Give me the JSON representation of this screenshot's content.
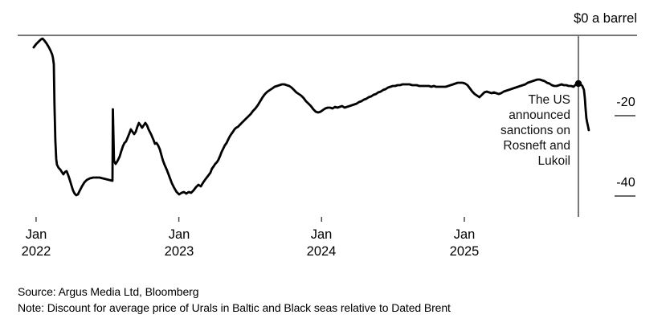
{
  "footer": {
    "source": "Source: Argus Media Ltd, Bloomberg",
    "note": "Note: Discount for average price of Urals in Baltic and Black seas relative to Dated Brent"
  },
  "chart_data": {
    "type": "line",
    "title": "",
    "xlabel": "",
    "ylabel": "$ a barrel",
    "y_top_label": "$0 a barrel",
    "x_domain": [
      2021.871,
      2026.21
    ],
    "y_domain": [
      -45.2,
      0
    ],
    "grid": "off",
    "legend": "none",
    "x_ticks": [
      {
        "t": 2022,
        "label": "Jan\n2022"
      },
      {
        "t": 2023,
        "label": "Jan\n2023"
      },
      {
        "t": 2024,
        "label": "Jan\n2024"
      },
      {
        "t": 2025,
        "label": "Jan\n2025"
      }
    ],
    "y_ticks": [
      {
        "v": -20,
        "label": "-20"
      },
      {
        "v": -40,
        "label": "-40"
      }
    ],
    "annotation": {
      "t": 2025.799,
      "v": -12.0,
      "text": "The US\nannounced\nsanctions on\nRosneft and\nLukoil"
    },
    "colors": {
      "line": "#000000",
      "axis": "#767676",
      "tick": "#4a4a4a"
    },
    "series": [
      {
        "name": "Urals discount to Dated Brent, $ a barrel",
        "points": [
          [
            2021.983,
            -3.0
          ],
          [
            2022.0,
            -2.2
          ],
          [
            2022.017,
            -1.6
          ],
          [
            2022.034,
            -1.0
          ],
          [
            2022.045,
            -0.8
          ],
          [
            2022.056,
            -1.2
          ],
          [
            2022.073,
            -2.0
          ],
          [
            2022.09,
            -3.0
          ],
          [
            2022.101,
            -3.8
          ],
          [
            2022.113,
            -4.8
          ],
          [
            2022.118,
            -5.6
          ],
          [
            2022.124,
            -7.2
          ],
          [
            2022.129,
            -17.2
          ],
          [
            2022.135,
            -26.2
          ],
          [
            2022.141,
            -30.8
          ],
          [
            2022.146,
            -32.2
          ],
          [
            2022.158,
            -33.0
          ],
          [
            2022.169,
            -33.4
          ],
          [
            2022.18,
            -34.0
          ],
          [
            2022.191,
            -34.6
          ],
          [
            2022.203,
            -34.0
          ],
          [
            2022.214,
            -33.8
          ],
          [
            2022.225,
            -34.8
          ],
          [
            2022.236,
            -36.0
          ],
          [
            2022.248,
            -37.4
          ],
          [
            2022.259,
            -38.6
          ],
          [
            2022.27,
            -39.4
          ],
          [
            2022.281,
            -39.8
          ],
          [
            2022.293,
            -39.6
          ],
          [
            2022.304,
            -38.8
          ],
          [
            2022.321,
            -37.6
          ],
          [
            2022.338,
            -36.6
          ],
          [
            2022.355,
            -36.0
          ],
          [
            2022.377,
            -35.6
          ],
          [
            2022.4,
            -35.4
          ],
          [
            2022.422,
            -35.4
          ],
          [
            2022.445,
            -35.4
          ],
          [
            2022.467,
            -35.6
          ],
          [
            2022.49,
            -35.8
          ],
          [
            2022.512,
            -36.0
          ],
          [
            2022.535,
            -36.2
          ],
          [
            2022.538,
            -18.4
          ],
          [
            2022.546,
            -31.2
          ],
          [
            2022.557,
            -32.0
          ],
          [
            2022.568,
            -31.4
          ],
          [
            2022.585,
            -30.2
          ],
          [
            2022.597,
            -28.8
          ],
          [
            2022.608,
            -27.6
          ],
          [
            2022.619,
            -26.8
          ],
          [
            2022.63,
            -26.4
          ],
          [
            2022.642,
            -25.4
          ],
          [
            2022.653,
            -24.4
          ],
          [
            2022.664,
            -23.4
          ],
          [
            2022.675,
            -24.0
          ],
          [
            2022.687,
            -24.6
          ],
          [
            2022.698,
            -24.0
          ],
          [
            2022.709,
            -22.8
          ],
          [
            2022.72,
            -21.8
          ],
          [
            2022.732,
            -22.4
          ],
          [
            2022.743,
            -23.0
          ],
          [
            2022.754,
            -22.4
          ],
          [
            2022.765,
            -21.8
          ],
          [
            2022.777,
            -22.4
          ],
          [
            2022.788,
            -23.4
          ],
          [
            2022.805,
            -24.6
          ],
          [
            2022.822,
            -26.0
          ],
          [
            2022.833,
            -27.0
          ],
          [
            2022.844,
            -26.8
          ],
          [
            2022.855,
            -27.4
          ],
          [
            2022.867,
            -28.4
          ],
          [
            2022.878,
            -29.8
          ],
          [
            2022.889,
            -31.2
          ],
          [
            2022.9,
            -32.2
          ],
          [
            2022.917,
            -33.6
          ],
          [
            2022.934,
            -35.2
          ],
          [
            2022.951,
            -36.8
          ],
          [
            2022.968,
            -38.0
          ],
          [
            2022.985,
            -39.0
          ],
          [
            2023.002,
            -39.6
          ],
          [
            2023.019,
            -39.2
          ],
          [
            2023.036,
            -39.0
          ],
          [
            2023.052,
            -39.4
          ],
          [
            2023.069,
            -39.0
          ],
          [
            2023.086,
            -39.2
          ],
          [
            2023.103,
            -38.6
          ],
          [
            2023.12,
            -37.8
          ],
          [
            2023.137,
            -37.2
          ],
          [
            2023.154,
            -37.6
          ],
          [
            2023.171,
            -36.6
          ],
          [
            2023.187,
            -35.8
          ],
          [
            2023.204,
            -35.0
          ],
          [
            2023.221,
            -34.2
          ],
          [
            2023.232,
            -33.2
          ],
          [
            2023.244,
            -32.6
          ],
          [
            2023.255,
            -32.0
          ],
          [
            2023.266,
            -31.6
          ],
          [
            2023.277,
            -31.0
          ],
          [
            2023.289,
            -30.0
          ],
          [
            2023.3,
            -29.0
          ],
          [
            2023.311,
            -28.2
          ],
          [
            2023.322,
            -27.4
          ],
          [
            2023.334,
            -26.8
          ],
          [
            2023.345,
            -26.0
          ],
          [
            2023.356,
            -25.2
          ],
          [
            2023.367,
            -24.6
          ],
          [
            2023.379,
            -24.0
          ],
          [
            2023.39,
            -23.4
          ],
          [
            2023.401,
            -23.0
          ],
          [
            2023.413,
            -22.8
          ],
          [
            2023.424,
            -22.4
          ],
          [
            2023.435,
            -22.0
          ],
          [
            2023.452,
            -21.4
          ],
          [
            2023.469,
            -20.8
          ],
          [
            2023.486,
            -20.2
          ],
          [
            2023.503,
            -19.6
          ],
          [
            2023.52,
            -18.8
          ],
          [
            2023.536,
            -18.2
          ],
          [
            2023.553,
            -17.4
          ],
          [
            2023.57,
            -16.4
          ],
          [
            2023.587,
            -15.4
          ],
          [
            2023.604,
            -14.6
          ],
          [
            2023.621,
            -14.0
          ],
          [
            2023.638,
            -13.6
          ],
          [
            2023.655,
            -13.2
          ],
          [
            2023.671,
            -12.8
          ],
          [
            2023.688,
            -12.6
          ],
          [
            2023.705,
            -12.4
          ],
          [
            2023.722,
            -12.2
          ],
          [
            2023.739,
            -12.2
          ],
          [
            2023.756,
            -12.4
          ],
          [
            2023.773,
            -12.6
          ],
          [
            2023.79,
            -13.0
          ],
          [
            2023.807,
            -13.6
          ],
          [
            2023.823,
            -14.2
          ],
          [
            2023.84,
            -14.6
          ],
          [
            2023.857,
            -15.0
          ],
          [
            2023.874,
            -15.6
          ],
          [
            2023.891,
            -16.4
          ],
          [
            2023.908,
            -17.0
          ],
          [
            2023.925,
            -17.6
          ],
          [
            2023.942,
            -18.4
          ],
          [
            2023.959,
            -19.0
          ],
          [
            2023.976,
            -19.2
          ],
          [
            2023.993,
            -19.0
          ],
          [
            2024.009,
            -18.6
          ],
          [
            2024.026,
            -18.2
          ],
          [
            2024.043,
            -18.0
          ],
          [
            2024.06,
            -18.0
          ],
          [
            2024.077,
            -18.2
          ],
          [
            2024.094,
            -17.8
          ],
          [
            2024.111,
            -18.0
          ],
          [
            2024.127,
            -17.8
          ],
          [
            2024.144,
            -17.6
          ],
          [
            2024.161,
            -18.0
          ],
          [
            2024.178,
            -17.8
          ],
          [
            2024.195,
            -17.6
          ],
          [
            2024.212,
            -17.4
          ],
          [
            2024.229,
            -17.2
          ],
          [
            2024.246,
            -17.0
          ],
          [
            2024.262,
            -16.6
          ],
          [
            2024.279,
            -16.4
          ],
          [
            2024.296,
            -16.0
          ],
          [
            2024.313,
            -15.8
          ],
          [
            2024.33,
            -15.4
          ],
          [
            2024.347,
            -15.2
          ],
          [
            2024.364,
            -14.8
          ],
          [
            2024.381,
            -14.6
          ],
          [
            2024.397,
            -14.2
          ],
          [
            2024.414,
            -14.0
          ],
          [
            2024.431,
            -13.6
          ],
          [
            2024.448,
            -13.4
          ],
          [
            2024.465,
            -13.0
          ],
          [
            2024.482,
            -12.8
          ],
          [
            2024.499,
            -12.6
          ],
          [
            2024.516,
            -12.6
          ],
          [
            2024.532,
            -12.4
          ],
          [
            2024.549,
            -12.4
          ],
          [
            2024.566,
            -12.2
          ],
          [
            2024.583,
            -12.2
          ],
          [
            2024.6,
            -12.2
          ],
          [
            2024.617,
            -12.2
          ],
          [
            2024.634,
            -12.4
          ],
          [
            2024.651,
            -12.4
          ],
          [
            2024.667,
            -12.4
          ],
          [
            2024.684,
            -12.6
          ],
          [
            2024.701,
            -12.6
          ],
          [
            2024.718,
            -12.6
          ],
          [
            2024.735,
            -12.6
          ],
          [
            2024.752,
            -12.6
          ],
          [
            2024.769,
            -12.8
          ],
          [
            2024.786,
            -12.6
          ],
          [
            2024.802,
            -12.8
          ],
          [
            2024.819,
            -12.8
          ],
          [
            2024.836,
            -12.8
          ],
          [
            2024.853,
            -12.8
          ],
          [
            2024.87,
            -12.8
          ],
          [
            2024.887,
            -12.6
          ],
          [
            2024.904,
            -12.4
          ],
          [
            2024.921,
            -12.2
          ],
          [
            2024.937,
            -12.0
          ],
          [
            2024.954,
            -11.8
          ],
          [
            2024.971,
            -11.8
          ],
          [
            2024.988,
            -11.8
          ],
          [
            2025.005,
            -12.0
          ],
          [
            2025.022,
            -12.4
          ],
          [
            2025.039,
            -13.2
          ],
          [
            2025.056,
            -14.0
          ],
          [
            2025.072,
            -14.6
          ],
          [
            2025.089,
            -15.0
          ],
          [
            2025.106,
            -15.4
          ],
          [
            2025.123,
            -14.8
          ],
          [
            2025.14,
            -14.2
          ],
          [
            2025.157,
            -14.0
          ],
          [
            2025.174,
            -14.2
          ],
          [
            2025.191,
            -14.4
          ],
          [
            2025.207,
            -14.2
          ],
          [
            2025.224,
            -14.4
          ],
          [
            2025.241,
            -14.6
          ],
          [
            2025.258,
            -14.4
          ],
          [
            2025.275,
            -14.0
          ],
          [
            2025.292,
            -13.8
          ],
          [
            2025.309,
            -13.6
          ],
          [
            2025.326,
            -13.4
          ],
          [
            2025.342,
            -13.2
          ],
          [
            2025.359,
            -13.0
          ],
          [
            2025.376,
            -12.8
          ],
          [
            2025.393,
            -12.6
          ],
          [
            2025.41,
            -12.4
          ],
          [
            2025.427,
            -12.2
          ],
          [
            2025.444,
            -11.8
          ],
          [
            2025.461,
            -11.6
          ],
          [
            2025.477,
            -11.4
          ],
          [
            2025.494,
            -11.2
          ],
          [
            2025.511,
            -11.0
          ],
          [
            2025.528,
            -11.0
          ],
          [
            2025.545,
            -11.2
          ],
          [
            2025.562,
            -11.4
          ],
          [
            2025.579,
            -11.8
          ],
          [
            2025.596,
            -12.0
          ],
          [
            2025.613,
            -12.4
          ],
          [
            2025.63,
            -12.6
          ],
          [
            2025.647,
            -12.6
          ],
          [
            2025.664,
            -12.4
          ],
          [
            2025.681,
            -12.2
          ],
          [
            2025.697,
            -12.4
          ],
          [
            2025.714,
            -12.4
          ],
          [
            2025.731,
            -12.6
          ],
          [
            2025.748,
            -12.6
          ],
          [
            2025.765,
            -12.8
          ],
          [
            2025.782,
            -12.2
          ],
          [
            2025.799,
            -12.0
          ],
          [
            2025.815,
            -12.2
          ],
          [
            2025.827,
            -12.6
          ],
          [
            2025.838,
            -13.6
          ],
          [
            2025.844,
            -15.6
          ],
          [
            2025.849,
            -18.2
          ],
          [
            2025.855,
            -20.6
          ],
          [
            2025.86,
            -21.6
          ],
          [
            2025.866,
            -22.6
          ],
          [
            2025.872,
            -23.6
          ]
        ]
      }
    ]
  }
}
